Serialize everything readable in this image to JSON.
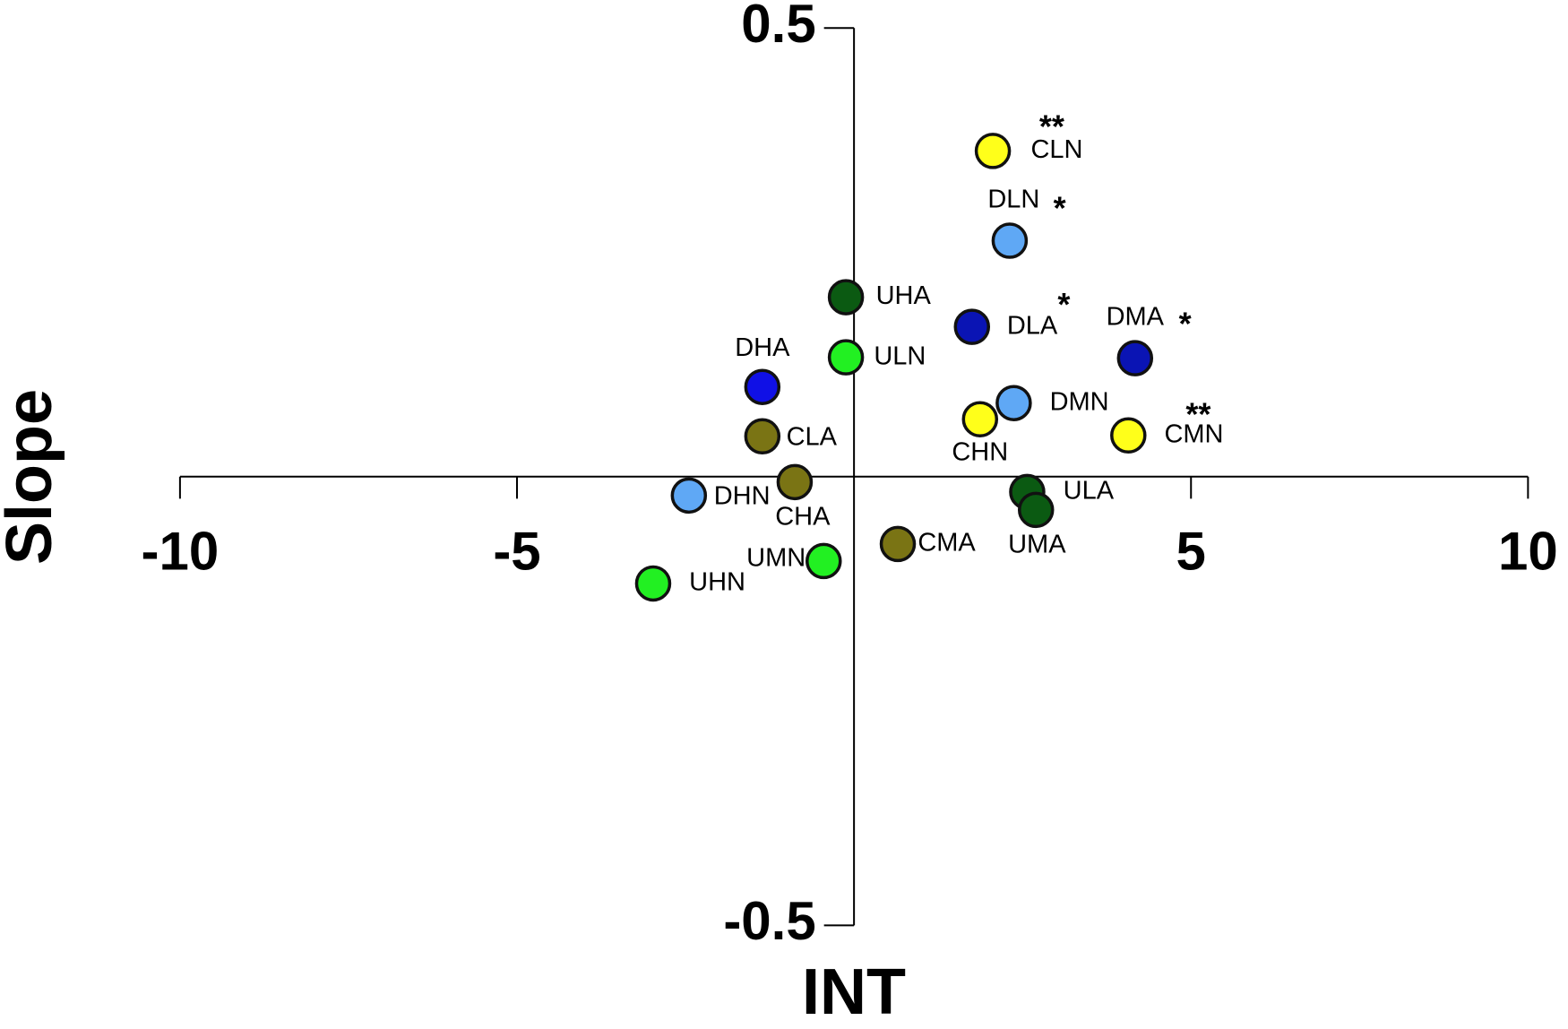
{
  "chart_data": {
    "type": "scatter",
    "xlabel": "INT",
    "ylabel": "Slope",
    "labels": [
      "CLN",
      "DLN",
      "UHA",
      "DLA",
      "DMA",
      "ULN",
      "DHA",
      "DMN",
      "CHN",
      "CMN",
      "CLA",
      "CHA",
      "ULA",
      "DHN",
      "UMA",
      "CMA",
      "UMN",
      "UHN"
    ],
    "x": [
      2.06,
      2.31,
      -0.12,
      1.75,
      4.17,
      -0.12,
      -1.36,
      2.37,
      1.87,
      4.07,
      -1.36,
      -0.88,
      2.57,
      -2.45,
      2.7,
      0.65,
      -0.45,
      -2.98
    ],
    "values": [
      0.363,
      0.263,
      0.2,
      0.167,
      0.132,
      0.133,
      0.1,
      0.082,
      0.064,
      0.046,
      0.045,
      -0.006,
      -0.017,
      -0.021,
      -0.037,
      -0.075,
      -0.094,
      -0.119
    ],
    "colors": [
      "#ffff1a",
      "#5fa8f5",
      "#0b5a12",
      "#0a14b4",
      "#0a14b4",
      "#22f022",
      "#1010e6",
      "#5fa8f5",
      "#ffff1a",
      "#ffff1a",
      "#7a7414",
      "#7a7414",
      "#0b5a12",
      "#5fa8f5",
      "#0b5a12",
      "#7a7414",
      "#22f022",
      "#22f022"
    ],
    "significance": [
      "**",
      "*",
      null,
      "*",
      "*",
      null,
      null,
      null,
      null,
      "**",
      null,
      null,
      null,
      null,
      null,
      null,
      null,
      null
    ],
    "xlim": [
      -10,
      10
    ],
    "xticks": [
      -10,
      -5,
      5,
      10
    ],
    "ylim": [
      -0.5,
      0.5
    ],
    "yticks": [
      -0.5,
      0.5
    ]
  }
}
